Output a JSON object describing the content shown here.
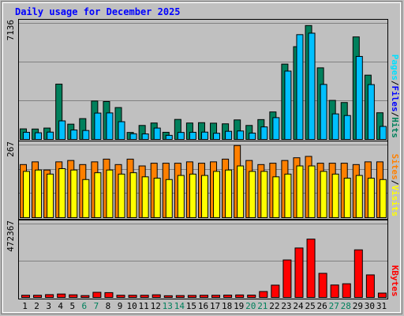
{
  "colors": {
    "background": "#c0c0c0",
    "title": "#0000ff",
    "hits": "#00805c",
    "files": "#00c0ff",
    "pages": "#00e0ff",
    "visits": "#ffff00",
    "sites": "#ff8000",
    "kbytes": "#ff0000",
    "weekend_label": "#00805c",
    "weekday_label": "#000000"
  },
  "chart_data": {
    "type": "bar",
    "title": "Daily usage for December 2025",
    "categories": [
      "1",
      "2",
      "3",
      "4",
      "5",
      "6",
      "7",
      "8",
      "9",
      "10",
      "11",
      "12",
      "13",
      "14",
      "15",
      "16",
      "17",
      "18",
      "19",
      "20",
      "21",
      "22",
      "23",
      "24",
      "25",
      "26",
      "27",
      "28",
      "29",
      "30",
      "31"
    ],
    "weekend_days": [
      "6",
      "7",
      "13",
      "14",
      "20",
      "21",
      "27",
      "28"
    ],
    "panels": [
      {
        "name": "pages-files-hits",
        "ymax": 7136,
        "ymax_label": "7136",
        "axis_label": [
          {
            "text": "Pages",
            "color": "#00e0ff"
          },
          {
            "text": "/",
            "color": "#000000"
          },
          {
            "text": "Files",
            "color": "#0000ff"
          },
          {
            "text": "/",
            "color": "#000000"
          },
          {
            "text": "Hits",
            "color": "#00805c"
          }
        ],
        "series": [
          {
            "name": "Hits",
            "color": "#00805c",
            "values": [
              650,
              640,
              700,
              3400,
              940,
              1280,
              2360,
              2330,
              1960,
              430,
              860,
              1010,
              440,
              1230,
              1010,
              1030,
              1000,
              960,
              1200,
              860,
              1220,
              1690,
              4630,
              5700,
              7000,
              4400,
              2400,
              2270,
              6300,
              3950,
              1640
            ]
          },
          {
            "name": "Files",
            "color": "#00c0ff",
            "values": [
              440,
              410,
              450,
              1140,
              580,
              550,
              1620,
              1630,
              1090,
              350,
              340,
              700,
              250,
              430,
              440,
              450,
              380,
              500,
              520,
              390,
              770,
              1340,
              4200,
              6440,
              6530,
              3380,
              1570,
              1470,
              5100,
              3370,
              800
            ]
          }
        ]
      },
      {
        "name": "sites-visits",
        "ymax": 267,
        "ymax_label": "267",
        "axis_label": [
          {
            "text": "Sites",
            "color": "#ff8000"
          },
          {
            "text": "/",
            "color": "#000000"
          },
          {
            "text": "Visits",
            "color": "#ffff00"
          }
        ],
        "series": [
          {
            "name": "Sites",
            "color": "#ff8000",
            "values": [
              195,
              205,
              175,
              205,
              210,
              195,
              205,
              215,
              195,
              215,
              190,
              200,
              200,
              200,
              205,
              200,
              205,
              215,
              265,
              210,
              195,
              200,
              210,
              220,
              225,
              200,
              200,
              200,
              195,
              205,
              205
            ]
          },
          {
            "name": "Visits",
            "color": "#ffff00",
            "values": [
              170,
              175,
              160,
              180,
              175,
              140,
              165,
              175,
              160,
              165,
              150,
              145,
              140,
              155,
              160,
              155,
              170,
              175,
              190,
              170,
              170,
              150,
              160,
              190,
              190,
              170,
              160,
              145,
              155,
              145,
              140
            ]
          }
        ]
      },
      {
        "name": "kbytes",
        "ymax": 472367,
        "ymax_label": "472367",
        "axis_label": [
          {
            "text": "KBytes",
            "color": "#ff0000"
          }
        ],
        "series": [
          {
            "name": "KBytes",
            "color": "#ff0000",
            "values": [
              14000,
              14000,
              18000,
              22000,
              17000,
              12000,
              33000,
              31000,
              14000,
              14000,
              14000,
              17000,
              11000,
              12000,
              13000,
              14000,
              14000,
              15000,
              16000,
              15000,
              38000,
              79000,
              241000,
              318000,
              375000,
              155000,
              80000,
              88000,
              306000,
              145000,
              28000
            ]
          }
        ]
      }
    ]
  }
}
